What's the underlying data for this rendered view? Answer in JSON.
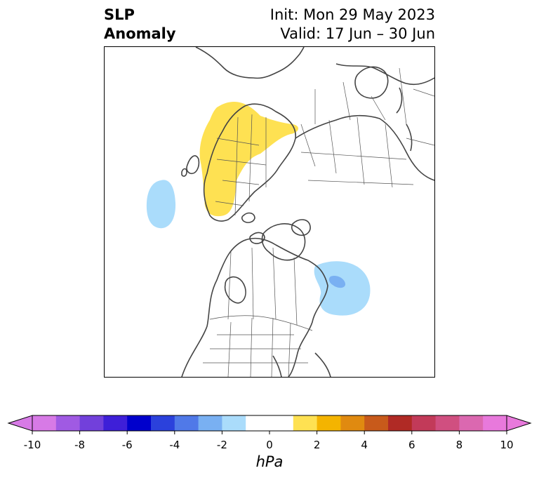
{
  "title": {
    "left_line1": "SLP",
    "left_line2": "Anomaly",
    "right_line1": "Init: Mon 29 May 2023",
    "right_line2": "Valid: 17 Jun – 30 Jun"
  },
  "colorbar": {
    "unit": "hPa",
    "min": -10,
    "max": 10,
    "step": 1,
    "extend": "both",
    "ticks": [
      "-10",
      "-8",
      "-6",
      "-4",
      "-2",
      "0",
      "2",
      "4",
      "6",
      "8",
      "10"
    ],
    "colors": [
      "#d77ae6",
      "#a05ae3",
      "#7240db",
      "#3e1fd8",
      "#0000cc",
      "#2b41dc",
      "#5079e8",
      "#79b0f2",
      "#aadcfb",
      "#ffffff",
      "#ffffff",
      "#fee152",
      "#f4b400",
      "#e08a10",
      "#c85a1b",
      "#b02a25",
      "#c23a59",
      "#d04f80",
      "#db68b0",
      "#e879dc"
    ]
  },
  "map": {
    "projection": "north-polar-stereographic",
    "anomalies": [
      {
        "region": "Europe / western Russia",
        "sign": "positive",
        "level": "+1 to +2 hPa",
        "color": "#fee152"
      },
      {
        "region": "Eastern North Atlantic",
        "sign": "negative",
        "level": "-1 to -2 hPa",
        "color": "#aadcfb"
      },
      {
        "region": "Newfoundland / western Atlantic",
        "sign": "negative",
        "level": "-1 to -3 hPa",
        "color": "#aadcfb"
      },
      {
        "region": "Newfoundland core",
        "sign": "negative",
        "level": "-2 to -3 hPa",
        "color": "#79b0f2"
      }
    ]
  }
}
